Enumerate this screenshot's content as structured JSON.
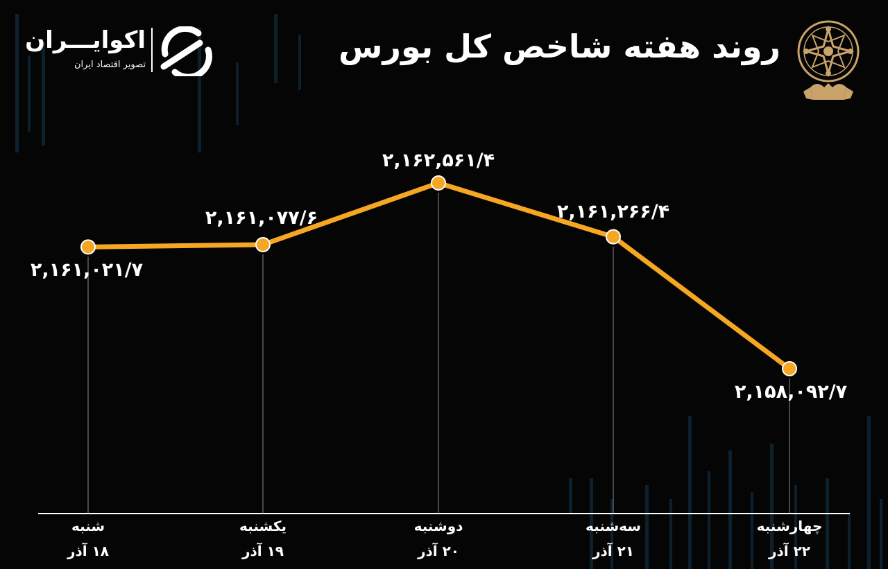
{
  "header": {
    "title": "روند هفته شاخص کل بورس"
  },
  "brand": {
    "name": "اکوایـــران",
    "tagline": "تصویر اقتصاد ایران"
  },
  "colors": {
    "background": "#050505",
    "line": "#f5a623",
    "point": "#f5a623",
    "guide": "#8a8a8a",
    "axis": "#ffffff",
    "candles": "#12324a",
    "emblem": "#c9a46a"
  },
  "chart_data": {
    "type": "line",
    "categories": [
      "شنبه",
      "یکشنبه",
      "دوشنبه",
      "سه‌شنبه",
      "چهارشنبه"
    ],
    "dates": [
      "۱۸ آذر",
      "۱۹ آذر",
      "۲۰ آذر",
      "۲۱ آذر",
      "۲۲ آذر"
    ],
    "values": [
      2161021.7,
      2161077.6,
      2162561.4,
      2161266.4,
      2158092.7
    ],
    "value_labels": [
      "۲,۱۶۱,۰۲۱/۷",
      "۲,۱۶۱,۰۷۷/۶",
      "۲,۱۶۲,۵۶۱/۴",
      "۲,۱۶۱,۲۶۶/۴",
      "۲,۱۵۸,۰۹۲/۷"
    ],
    "title": "روند هفته شاخص کل بورس",
    "xlabel": "",
    "ylabel": "",
    "grid": false,
    "legend": "none"
  }
}
